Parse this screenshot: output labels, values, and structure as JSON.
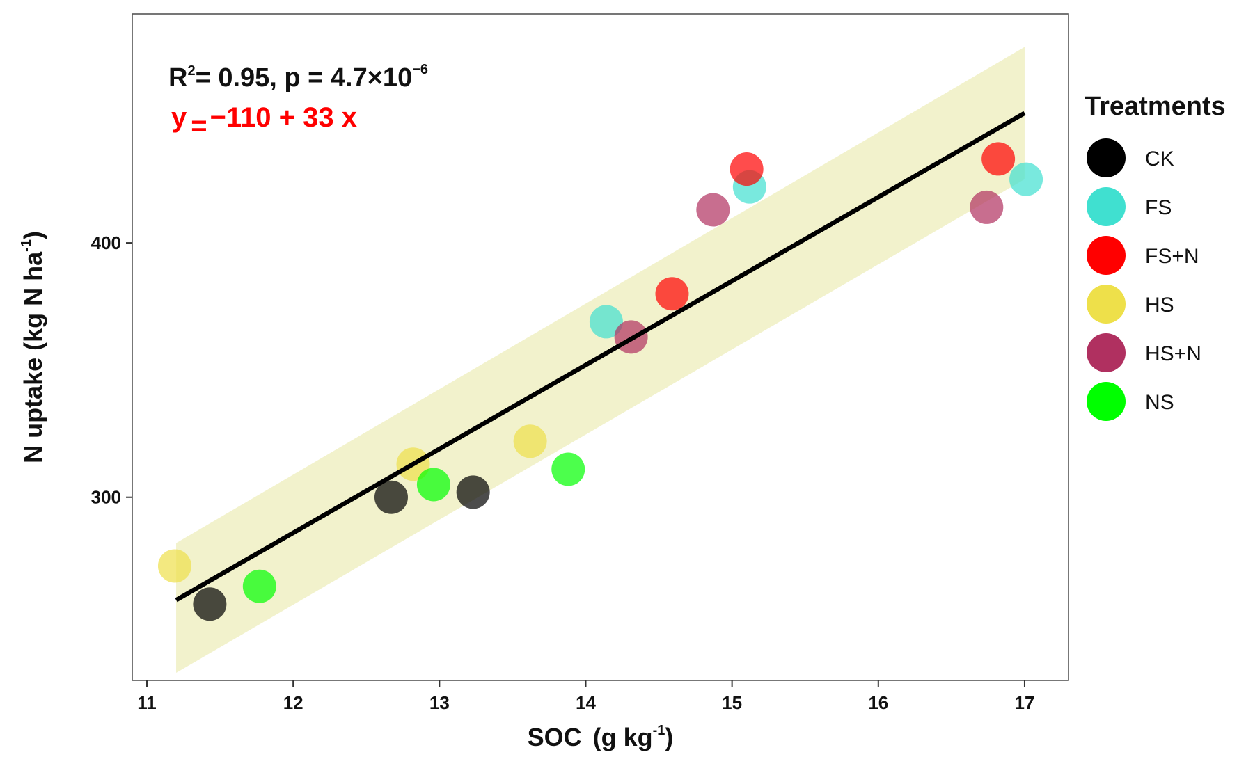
{
  "chart_data": {
    "type": "scatter",
    "xlabel": "SOC",
    "xlabel_unit_base": "(g kg",
    "xlabel_unit_sup": "-1",
    "xlabel_unit_close": ")",
    "ylabel": "N uptake (kg N ha",
    "ylabel_sup": "-1",
    "ylabel_close": ")",
    "xlim": [
      10.9,
      17.3
    ],
    "ylim": [
      228,
      490
    ],
    "x_ticks": [
      11,
      12,
      13,
      14,
      15,
      16,
      17
    ],
    "x_tick_labels": [
      "11",
      "12",
      "13",
      "14",
      "15",
      "16",
      "17"
    ],
    "y_ticks": [
      300,
      400
    ],
    "y_tick_labels": [
      "300",
      "400"
    ],
    "grid": false,
    "legend_position": "right",
    "annotation": {
      "r2_label": "R",
      "r2_sup": "2",
      "r2_rest": "= 0.95, p = 4.7×10",
      "p_sup": "−6",
      "equation_y": "y",
      "equation_eq": "=",
      "equation_rest": "−110 + 33 x",
      "equation_color": "#ff0000"
    },
    "regression": {
      "intercept": -110,
      "slope": 33,
      "x_range": [
        11.2,
        17.0
      ],
      "line_color": "#000000",
      "ci_color": "#eeeebb",
      "ci_lower_at_start": 231,
      "ci_upper_at_start": 282,
      "ci_lower_at_end": 425,
      "ci_upper_at_end": 477
    },
    "legend": {
      "title": "Treatments",
      "items": [
        {
          "label": "CK",
          "color": "#000000"
        },
        {
          "label": "FS",
          "color": "#40e0d0"
        },
        {
          "label": "FS+N",
          "color": "#ff0000"
        },
        {
          "label": "HS",
          "color": "#eee04a"
        },
        {
          "label": "HS+N",
          "color": "#b03060"
        },
        {
          "label": "NS",
          "color": "#00ff00"
        }
      ]
    },
    "series": [
      {
        "name": "CK",
        "color": "#000000",
        "points": [
          {
            "x": 11.43,
            "y": 258
          },
          {
            "x": 12.67,
            "y": 300
          },
          {
            "x": 13.23,
            "y": 302
          }
        ]
      },
      {
        "name": "FS",
        "color": "#40e0d0",
        "points": [
          {
            "x": 14.14,
            "y": 369
          },
          {
            "x": 15.12,
            "y": 422
          },
          {
            "x": 17.01,
            "y": 425
          }
        ]
      },
      {
        "name": "FS+N",
        "color": "#ff0000",
        "points": [
          {
            "x": 14.59,
            "y": 380
          },
          {
            "x": 15.1,
            "y": 429
          },
          {
            "x": 16.82,
            "y": 433
          }
        ]
      },
      {
        "name": "HS",
        "color": "#eee04a",
        "points": [
          {
            "x": 11.19,
            "y": 273
          },
          {
            "x": 12.82,
            "y": 313
          },
          {
            "x": 13.62,
            "y": 322
          }
        ]
      },
      {
        "name": "HS+N",
        "color": "#b03060",
        "points": [
          {
            "x": 14.31,
            "y": 363
          },
          {
            "x": 14.87,
            "y": 413
          },
          {
            "x": 16.74,
            "y": 414
          }
        ]
      },
      {
        "name": "NS",
        "color": "#00ff00",
        "points": [
          {
            "x": 11.77,
            "y": 265
          },
          {
            "x": 12.96,
            "y": 305
          },
          {
            "x": 13.88,
            "y": 311
          }
        ]
      }
    ]
  }
}
